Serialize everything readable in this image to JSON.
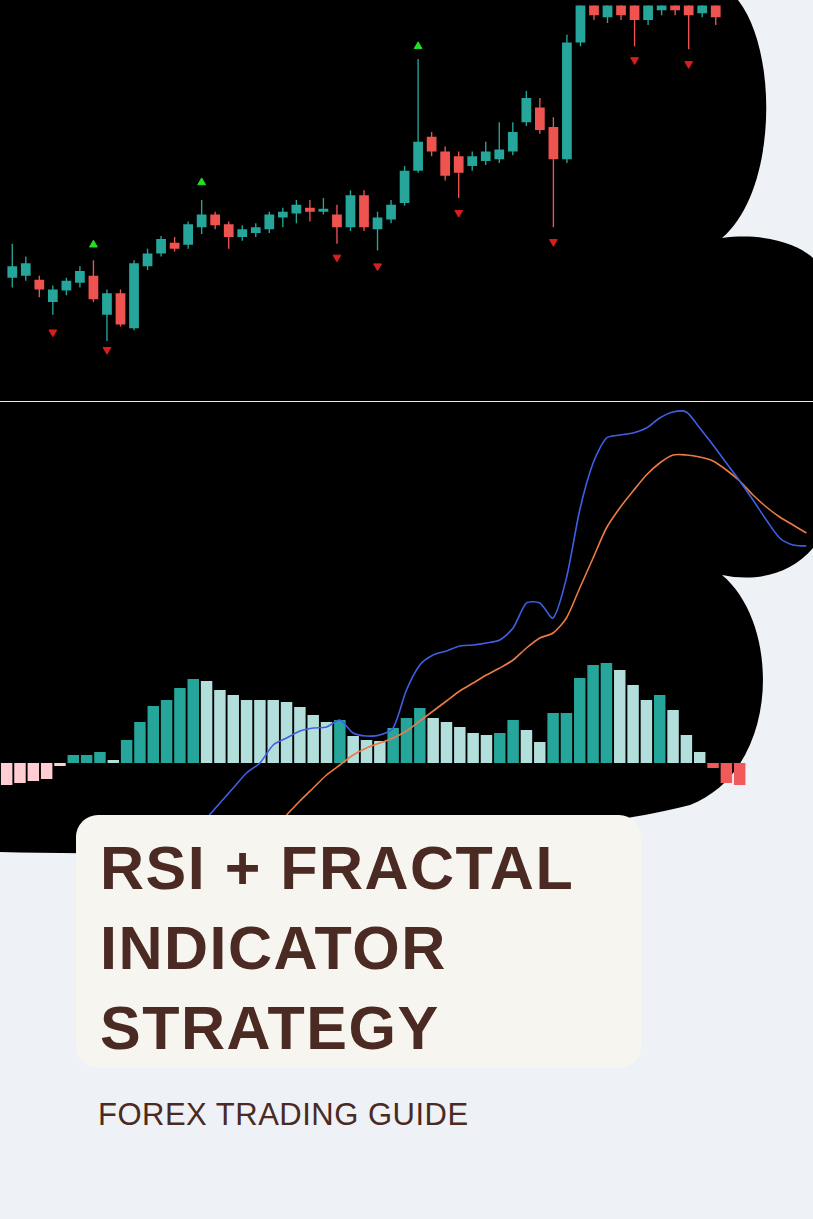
{
  "title": "RSI + FRACTAL INDICATOR STRATEGY",
  "subtitle": "FOREX TRADING GUIDE",
  "chart_data": [
    {
      "type": "candlestick",
      "categories": [
        null,
        null,
        null,
        null,
        null,
        null,
        null,
        null,
        null,
        null,
        null,
        null,
        null,
        null,
        null,
        null,
        null,
        null,
        null,
        null,
        null,
        null,
        null,
        null,
        null,
        null,
        null,
        null,
        null,
        null,
        null,
        null,
        null,
        null,
        null,
        null,
        null,
        null,
        null,
        null,
        null,
        null,
        null,
        null,
        null,
        null,
        null,
        null,
        null,
        null,
        null,
        null,
        null
      ],
      "open": [
        120,
        122,
        118,
        95,
        107,
        115,
        122,
        82,
        104,
        68,
        132,
        145,
        156,
        154,
        172,
        185,
        175,
        162,
        166,
        170,
        182,
        186,
        192,
        188,
        185,
        172,
        205,
        170,
        180,
        197,
        230,
        265,
        250,
        245,
        235,
        240,
        242,
        250,
        280,
        295,
        275,
        242,
        362,
        415,
        388,
        415,
        405,
        385,
        395,
        405,
        405,
        392,
        405
      ],
      "high": [
        155,
        142,
        122,
        112,
        120,
        132,
        138,
        108,
        108,
        138,
        150,
        163,
        162,
        178,
        200,
        188,
        178,
        174,
        176,
        188,
        192,
        200,
        200,
        202,
        195,
        210,
        210,
        188,
        200,
        235,
        345,
        270,
        255,
        250,
        250,
        260,
        280,
        280,
        312,
        305,
        285,
        370,
        420,
        420,
        420,
        420,
        415,
        410,
        412,
        412,
        410,
        415,
        412
      ],
      "low": [
        110,
        117,
        100,
        82,
        102,
        110,
        95,
        55,
        70,
        66,
        128,
        142,
        147,
        150,
        165,
        170,
        150,
        158,
        162,
        166,
        172,
        176,
        178,
        185,
        155,
        168,
        168,
        148,
        176,
        194,
        228,
        245,
        220,
        202,
        230,
        236,
        238,
        246,
        276,
        268,
        172,
        238,
        358,
        385,
        382,
        385,
        358,
        380,
        390,
        390,
        355,
        388,
        380
      ],
      "close": [
        132,
        135,
        108,
        108,
        117,
        127,
        98,
        104,
        72,
        135,
        145,
        160,
        150,
        175,
        185,
        174,
        162,
        170,
        172,
        185,
        188,
        195,
        188,
        191,
        172,
        205,
        172,
        182,
        195,
        230,
        260,
        250,
        225,
        228,
        245,
        250,
        252,
        270,
        305,
        272,
        242,
        362,
        410,
        390,
        412,
        390,
        385,
        402,
        405,
        395,
        390,
        408,
        388
      ],
      "colors": [
        "#26a69a",
        "#26a69a",
        "#ef5350",
        "#26a69a",
        "#26a69a",
        "#26a69a",
        "#ef5350",
        "#26a69a",
        "#ef5350",
        "#26a69a",
        "#26a69a",
        "#26a69a",
        "#ef5350",
        "#26a69a",
        "#26a69a",
        "#ef5350",
        "#ef5350",
        "#26a69a",
        "#26a69a",
        "#26a69a",
        "#26a69a",
        "#26a69a",
        "#ef5350",
        "#26a69a",
        "#ef5350",
        "#26a69a",
        "#ef5350",
        "#26a69a",
        "#26a69a",
        "#26a69a",
        "#26a69a",
        "#ef5350",
        "#ef5350",
        "#ef5350",
        "#26a69a",
        "#26a69a",
        "#26a69a",
        "#26a69a",
        "#26a69a",
        "#ef5350",
        "#ef5350",
        "#26a69a",
        "#26a69a",
        "#ef5350",
        "#26a69a",
        "#ef5350",
        "#ef5350",
        "#26a69a",
        "#26a69a",
        "#ef5350",
        "#ef5350",
        "#26a69a",
        "#ef5350"
      ],
      "series": [
        {
          "type": "scatter",
          "marker": "triangle_up",
          "color": "#22e022",
          "values": [
            null,
            null,
            null,
            null,
            null,
            null,
            154,
            null,
            null,
            null,
            null,
            null,
            null,
            null,
            218,
            null,
            null,
            null,
            null,
            null,
            null,
            null,
            null,
            null,
            null,
            null,
            null,
            null,
            null,
            null,
            358,
            null,
            null,
            null,
            null,
            null,
            null,
            null,
            null,
            null,
            null,
            null,
            null,
            null,
            null,
            null,
            null,
            null,
            null,
            null,
            null,
            null,
            null
          ]
        },
        {
          "type": "scatter",
          "marker": "triangle_down",
          "color": "#d81e1e",
          "values": [
            null,
            null,
            null,
            64,
            null,
            null,
            null,
            46,
            null,
            null,
            null,
            null,
            null,
            null,
            null,
            null,
            null,
            null,
            null,
            null,
            null,
            null,
            null,
            null,
            141,
            null,
            null,
            132,
            null,
            null,
            null,
            null,
            null,
            187,
            null,
            null,
            null,
            null,
            null,
            null,
            157,
            null,
            null,
            null,
            null,
            null,
            344,
            null,
            null,
            null,
            340,
            null,
            null
          ]
        }
      ],
      "ylim": [
        0,
        400
      ],
      "grid": false,
      "tick_labels": false
    },
    {
      "type": "bar",
      "categories": [
        null,
        null,
        null,
        null,
        null,
        null,
        null,
        null,
        null,
        null,
        null,
        null,
        null,
        null,
        null,
        null,
        null,
        null,
        null,
        null,
        null,
        null,
        null,
        null,
        null,
        null,
        null,
        null,
        null,
        null,
        null,
        null,
        null,
        null,
        null,
        null,
        null,
        null,
        null,
        null,
        null,
        null,
        null,
        null,
        null,
        null,
        null,
        null,
        null,
        null,
        null,
        null,
        null,
        null,
        null,
        null,
        null,
        null,
        null,
        null,
        null
      ],
      "series": [
        {
          "type": "bar",
          "values": [
            -22,
            -20,
            -18,
            -16,
            -3,
            8,
            8,
            11,
            3,
            23,
            41,
            57,
            63,
            75,
            84,
            82,
            73,
            68,
            63,
            63,
            63,
            61,
            56,
            48,
            41,
            43,
            27,
            23,
            22,
            35,
            45,
            55,
            45,
            41,
            36,
            30,
            28,
            30,
            43,
            33,
            21,
            50,
            50,
            85,
            98,
            100,
            93,
            78,
            63,
            68,
            53,
            28,
            11,
            -5,
            -20,
            -22,
            null,
            null,
            null,
            null,
            null
          ],
          "colors": [
            "#ffcdd2",
            "#ffcdd2",
            "#ffcdd2",
            "#ffcdd2",
            "#ffcdd2",
            "#26a69a",
            "#26a69a",
            "#26a69a",
            "#b2dfdb",
            "#26a69a",
            "#26a69a",
            "#26a69a",
            "#26a69a",
            "#26a69a",
            "#26a69a",
            "#b2dfdb",
            "#b2dfdb",
            "#b2dfdb",
            "#b2dfdb",
            "#b2dfdb",
            "#b2dfdb",
            "#b2dfdb",
            "#b2dfdb",
            "#b2dfdb",
            "#b2dfdb",
            "#26a69a",
            "#b2dfdb",
            "#b2dfdb",
            "#b2dfdb",
            "#26a69a",
            "#26a69a",
            "#26a69a",
            "#b2dfdb",
            "#b2dfdb",
            "#b2dfdb",
            "#b2dfdb",
            "#b2dfdb",
            "#26a69a",
            "#26a69a",
            "#b2dfdb",
            "#b2dfdb",
            "#26a69a",
            "#26a69a",
            "#26a69a",
            "#26a69a",
            "#26a69a",
            "#b2dfdb",
            "#b2dfdb",
            "#b2dfdb",
            "#26a69a",
            "#b2dfdb",
            "#b2dfdb",
            "#b2dfdb",
            "#f05a5a",
            "#f05a5a",
            "#f05a5a",
            null,
            null,
            null,
            null,
            null
          ]
        },
        {
          "type": "line",
          "color": "#3f5fe6",
          "values": [
            null,
            null,
            null,
            null,
            null,
            null,
            null,
            null,
            null,
            null,
            null,
            null,
            null,
            null,
            -65,
            -55,
            -40,
            -25,
            -10,
            0,
            18,
            25,
            32,
            35,
            36,
            43,
            30,
            27,
            28,
            35,
            73,
            98,
            108,
            112,
            117,
            118,
            120,
            123,
            135,
            160,
            160,
            145,
            185,
            253,
            300,
            325,
            328,
            330,
            335,
            345,
            351,
            351,
            335,
            318,
            300,
            282,
            263,
            243,
            225,
            218,
            217
          ]
        },
        {
          "type": "line",
          "color": "#ec7a45",
          "values": [
            null,
            null,
            null,
            null,
            null,
            null,
            null,
            null,
            null,
            null,
            null,
            null,
            null,
            null,
            null,
            null,
            null,
            null,
            null,
            null,
            null,
            -52,
            -38,
            -25,
            -12,
            -2,
            8,
            15,
            20,
            25,
            32,
            42,
            52,
            62,
            72,
            80,
            88,
            95,
            103,
            115,
            125,
            130,
            145,
            175,
            205,
            235,
            255,
            272,
            288,
            300,
            308,
            308,
            306,
            302,
            293,
            282,
            268,
            256,
            246,
            238,
            230
          ]
        }
      ],
      "ylim": [
        -87,
        361
      ],
      "grid": false,
      "tick_labels": false
    }
  ]
}
